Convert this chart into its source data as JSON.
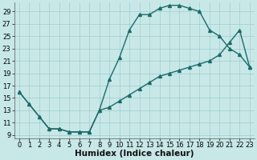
{
  "xlabel": "Humidex (Indice chaleur)",
  "bg_color": "#c8e8e8",
  "grid_color": "#a0cccc",
  "line_color": "#1a6b6b",
  "marker": "^",
  "markersize": 2.8,
  "linewidth": 1.0,
  "xlim": [
    -0.5,
    23.5
  ],
  "ylim": [
    8.5,
    30.5
  ],
  "xticks": [
    0,
    1,
    2,
    3,
    4,
    5,
    6,
    7,
    8,
    9,
    10,
    11,
    12,
    13,
    14,
    15,
    16,
    17,
    18,
    19,
    20,
    21,
    22,
    23
  ],
  "yticks": [
    9,
    11,
    13,
    15,
    17,
    19,
    21,
    23,
    25,
    27,
    29
  ],
  "curve1_x": [
    0,
    1,
    2,
    3,
    4,
    5,
    6,
    7,
    8,
    9,
    10,
    11,
    12,
    13,
    14,
    15,
    16,
    17,
    18,
    19,
    20,
    21,
    22,
    23
  ],
  "curve1_y": [
    16,
    14,
    12,
    10,
    10,
    9.5,
    9.5,
    9.5,
    13,
    18,
    21.5,
    26,
    28.5,
    28.5,
    29.5,
    30,
    30,
    29.5,
    29,
    26,
    25,
    23,
    22,
    20
  ],
  "curve2_x": [
    0,
    1,
    2,
    3,
    4,
    5,
    6,
    7,
    8,
    9,
    10,
    11,
    12,
    13,
    14,
    15,
    16,
    17,
    18,
    19,
    20,
    21,
    22,
    23
  ],
  "curve2_y": [
    16,
    14,
    12,
    10,
    10,
    9.5,
    9.5,
    9.5,
    13,
    13.5,
    14.5,
    15.5,
    16.5,
    17.5,
    18.5,
    19,
    19.5,
    20,
    20.5,
    21,
    22,
    24,
    26,
    20
  ],
  "tick_fontsize": 6,
  "label_fontsize": 7.5
}
